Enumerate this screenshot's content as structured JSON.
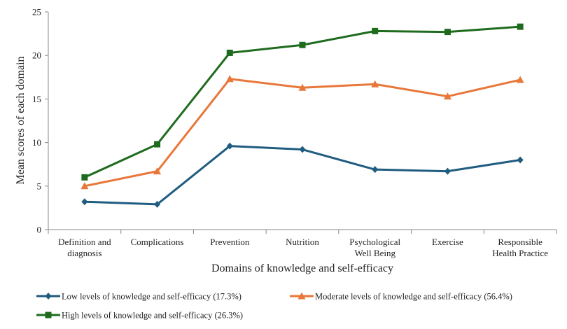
{
  "chart_data": {
    "type": "line",
    "title": "",
    "xlabel": "Domains of knowledge and self-efficacy",
    "ylabel": "Mean scores of each domain",
    "ylim": [
      0,
      25
    ],
    "yticks": [
      0,
      5,
      10,
      15,
      20,
      25
    ],
    "grid": false,
    "legend_position": "bottom",
    "categories": [
      [
        "Definition and",
        "diagnosis"
      ],
      [
        "Complications"
      ],
      [
        "Prevention"
      ],
      [
        "Nutrition"
      ],
      [
        "Psychological",
        "Well Being"
      ],
      [
        "Exercise"
      ],
      [
        "Responsible",
        "Health Practice"
      ]
    ],
    "series": [
      {
        "name": "Low levels of knowledge and self-efficacy (17.3%)",
        "color": "#1f5c80",
        "marker": "diamond",
        "values": [
          3.2,
          2.9,
          9.6,
          9.2,
          6.9,
          6.7,
          8.0
        ]
      },
      {
        "name": "Moderate levels of knowledge and self-efficacy (56.4%)",
        "color": "#e8773a",
        "marker": "triangle",
        "values": [
          5.0,
          6.7,
          17.3,
          16.3,
          16.7,
          15.3,
          17.2
        ]
      },
      {
        "name": "High levels of knowledge and self-efficacy (26.3%)",
        "color": "#1e6b1e",
        "marker": "square",
        "values": [
          6.0,
          9.8,
          20.3,
          21.2,
          22.8,
          22.7,
          23.3
        ]
      }
    ]
  }
}
